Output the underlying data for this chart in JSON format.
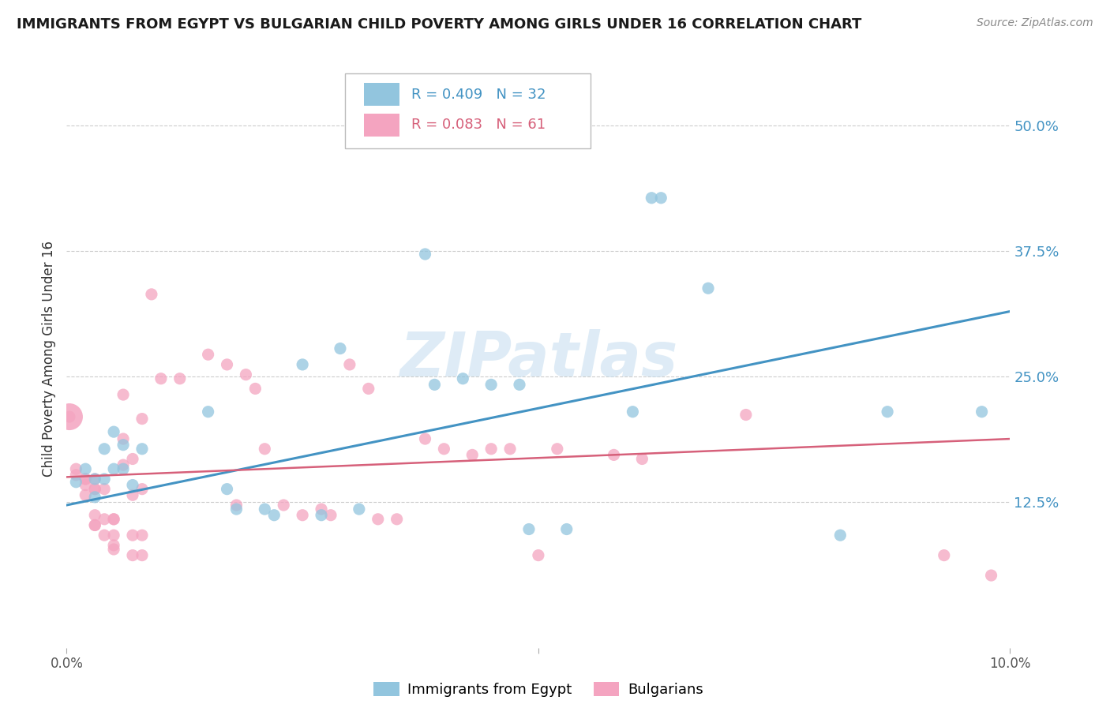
{
  "title": "IMMIGRANTS FROM EGYPT VS BULGARIAN CHILD POVERTY AMONG GIRLS UNDER 16 CORRELATION CHART",
  "source": "Source: ZipAtlas.com",
  "ylabel": "Child Poverty Among Girls Under 16",
  "ytick_labels": [
    "12.5%",
    "25.0%",
    "37.5%",
    "50.0%"
  ],
  "ytick_values": [
    0.125,
    0.25,
    0.375,
    0.5
  ],
  "xlim": [
    0.0,
    0.1
  ],
  "ylim": [
    -0.02,
    0.555
  ],
  "series1_label": "Immigrants from Egypt",
  "series2_label": "Bulgarians",
  "series1_color": "#92c5de",
  "series2_color": "#f4a4c0",
  "series1_line_color": "#4393c3",
  "series2_line_color": "#d6607a",
  "watermark_text": "ZIPatlas",
  "watermark_color": "#c8dff0",
  "series1_points": [
    [
      0.001,
      0.145
    ],
    [
      0.002,
      0.158
    ],
    [
      0.003,
      0.13
    ],
    [
      0.003,
      0.148
    ],
    [
      0.004,
      0.178
    ],
    [
      0.004,
      0.148
    ],
    [
      0.005,
      0.195
    ],
    [
      0.005,
      0.158
    ],
    [
      0.006,
      0.158
    ],
    [
      0.006,
      0.182
    ],
    [
      0.007,
      0.142
    ],
    [
      0.008,
      0.178
    ],
    [
      0.015,
      0.215
    ],
    [
      0.017,
      0.138
    ],
    [
      0.018,
      0.118
    ],
    [
      0.021,
      0.118
    ],
    [
      0.022,
      0.112
    ],
    [
      0.025,
      0.262
    ],
    [
      0.027,
      0.112
    ],
    [
      0.029,
      0.278
    ],
    [
      0.031,
      0.118
    ],
    [
      0.038,
      0.372
    ],
    [
      0.039,
      0.242
    ],
    [
      0.042,
      0.248
    ],
    [
      0.045,
      0.242
    ],
    [
      0.048,
      0.242
    ],
    [
      0.049,
      0.098
    ],
    [
      0.053,
      0.098
    ],
    [
      0.06,
      0.215
    ],
    [
      0.062,
      0.428
    ],
    [
      0.063,
      0.428
    ],
    [
      0.068,
      0.338
    ],
    [
      0.082,
      0.092
    ],
    [
      0.087,
      0.215
    ],
    [
      0.097,
      0.215
    ]
  ],
  "series2_points": [
    [
      0.0003,
      0.21
    ],
    [
      0.001,
      0.158
    ],
    [
      0.001,
      0.152
    ],
    [
      0.002,
      0.148
    ],
    [
      0.002,
      0.148
    ],
    [
      0.002,
      0.132
    ],
    [
      0.002,
      0.142
    ],
    [
      0.003,
      0.148
    ],
    [
      0.003,
      0.138
    ],
    [
      0.003,
      0.138
    ],
    [
      0.003,
      0.112
    ],
    [
      0.003,
      0.102
    ],
    [
      0.003,
      0.102
    ],
    [
      0.004,
      0.138
    ],
    [
      0.004,
      0.108
    ],
    [
      0.004,
      0.092
    ],
    [
      0.005,
      0.108
    ],
    [
      0.005,
      0.108
    ],
    [
      0.005,
      0.092
    ],
    [
      0.005,
      0.082
    ],
    [
      0.005,
      0.078
    ],
    [
      0.006,
      0.232
    ],
    [
      0.006,
      0.188
    ],
    [
      0.006,
      0.162
    ],
    [
      0.007,
      0.168
    ],
    [
      0.007,
      0.132
    ],
    [
      0.007,
      0.092
    ],
    [
      0.007,
      0.072
    ],
    [
      0.008,
      0.208
    ],
    [
      0.008,
      0.138
    ],
    [
      0.008,
      0.092
    ],
    [
      0.008,
      0.072
    ],
    [
      0.009,
      0.332
    ],
    [
      0.01,
      0.248
    ],
    [
      0.012,
      0.248
    ],
    [
      0.015,
      0.272
    ],
    [
      0.017,
      0.262
    ],
    [
      0.018,
      0.122
    ],
    [
      0.019,
      0.252
    ],
    [
      0.02,
      0.238
    ],
    [
      0.021,
      0.178
    ],
    [
      0.023,
      0.122
    ],
    [
      0.025,
      0.112
    ],
    [
      0.027,
      0.118
    ],
    [
      0.028,
      0.112
    ],
    [
      0.03,
      0.262
    ],
    [
      0.032,
      0.238
    ],
    [
      0.033,
      0.108
    ],
    [
      0.035,
      0.108
    ],
    [
      0.038,
      0.188
    ],
    [
      0.04,
      0.178
    ],
    [
      0.043,
      0.172
    ],
    [
      0.045,
      0.178
    ],
    [
      0.047,
      0.178
    ],
    [
      0.05,
      0.072
    ],
    [
      0.052,
      0.178
    ],
    [
      0.058,
      0.172
    ],
    [
      0.061,
      0.168
    ],
    [
      0.072,
      0.212
    ],
    [
      0.093,
      0.072
    ],
    [
      0.098,
      0.052
    ]
  ],
  "series1_trendline": [
    [
      0.0,
      0.122
    ],
    [
      0.1,
      0.315
    ]
  ],
  "series2_trendline": [
    [
      0.0,
      0.15
    ],
    [
      0.1,
      0.188
    ]
  ],
  "background_color": "#ffffff",
  "grid_color": "#cccccc",
  "title_fontsize": 13,
  "source_fontsize": 10,
  "ylabel_fontsize": 12,
  "ytick_fontsize": 13,
  "xtick_fontsize": 12,
  "legend_fontsize": 13,
  "watermark_fontsize": 56
}
